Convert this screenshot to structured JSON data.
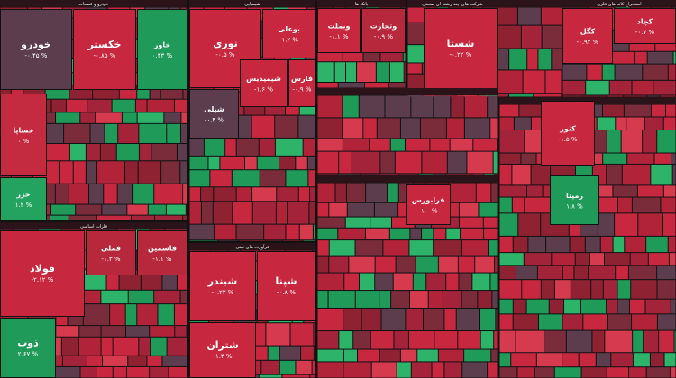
{
  "sectors": [
    {
      "title": "خودرو و قطعات",
      "tiles": [
        {
          "name": "خودرو",
          "change": "-۰.۴۵ %",
          "color": "#5b3d4e"
        },
        {
          "name": "خکستر",
          "change": "-۰.۸۵ %",
          "color": "#c8283f"
        },
        {
          "name": "خاور",
          "change": "۰.۴۳ %",
          "color": "#1f9a58"
        },
        {
          "name": "خساپا",
          "change": "۰ %",
          "color": "#c42a40"
        },
        {
          "name": "خزر",
          "change": "۱.۲ %",
          "color": "#23a35f"
        }
      ]
    },
    {
      "title": "فلزات اساسی",
      "tiles": [
        {
          "name": "فولاد",
          "change": "-۲.۱۲ %",
          "color": "#c8283f"
        },
        {
          "name": "ذوب",
          "change": "۲.۶۷ %",
          "color": "#1f9a58"
        },
        {
          "name": "فملی",
          "change": "-۱.۳ %",
          "color": "#b8283c"
        },
        {
          "name": "فاسمین",
          "change": "-۱.۱ %",
          "color": "#b8283c"
        }
      ]
    },
    {
      "title": "شیمیایی",
      "tiles": [
        {
          "name": "نوری",
          "change": "-۰.۵ %",
          "color": "#c8283f"
        },
        {
          "name": "بوعلی",
          "change": "-۱.۲ %",
          "color": "#c8283f"
        },
        {
          "name": "شپلی",
          "change": "-۰.۴ %",
          "color": "#5b3d4e"
        },
        {
          "name": "شیمیدیس",
          "change": "-۱.۶ %",
          "color": "#c8283f"
        },
        {
          "name": "فارس",
          "change": "-۰.۹ %",
          "color": "#c8283f"
        }
      ]
    },
    {
      "title": "فرآورده های نفتی",
      "tiles": [
        {
          "name": "شبندر",
          "change": "-۰.۲۳ %",
          "color": "#c8283f"
        },
        {
          "name": "شپنا",
          "change": "-۰.۸ %",
          "color": "#c8283f"
        },
        {
          "name": "شتران",
          "change": "-۱.۴ %",
          "color": "#c8283f"
        }
      ]
    },
    {
      "title": "بانک ها",
      "tiles": [
        {
          "name": "وبملت",
          "change": "-۱.۱ %",
          "color": "#c8283f"
        },
        {
          "name": "وتجارت",
          "change": "-۰.۹ %",
          "color": "#b8283c"
        }
      ]
    },
    {
      "title": "شرکت های چند رشته ای صنعتی",
      "tiles": [
        {
          "name": "شستا",
          "change": "-۰.۲۲ %",
          "color": "#c8283f"
        }
      ]
    },
    {
      "title": "استخراج کانه های فلزی",
      "tiles": [
        {
          "name": "کگل",
          "change": "-۰.۹۲ %",
          "color": "#c8283f"
        },
        {
          "name": "کچاد",
          "change": "-۰.۷ %",
          "color": "#c8283f"
        }
      ]
    },
    {
      "tiles": [
        {
          "name": "فرابورس",
          "change": "-۱.۰ %",
          "color": "#c8283f"
        }
      ]
    },
    {
      "tiles": [
        {
          "name": "کنور",
          "change": "-۱.۵ %",
          "color": "#c8283f"
        },
        {
          "name": "رمپنا",
          "change": "۱.۸ %",
          "color": "#1f9a58"
        }
      ]
    }
  ]
}
